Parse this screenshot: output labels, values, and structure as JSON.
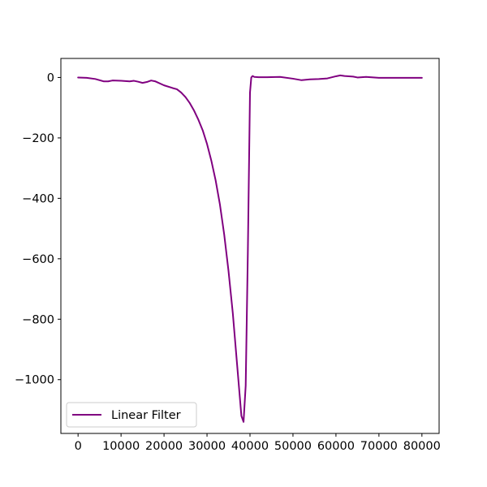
{
  "chart_data": {
    "type": "line",
    "title": "",
    "xlabel": "",
    "ylabel": "",
    "xlim": [
      -4000,
      84000
    ],
    "ylim": [
      -1178,
      63
    ],
    "x_ticks": [
      0,
      10000,
      20000,
      30000,
      40000,
      50000,
      60000,
      70000,
      80000
    ],
    "x_tick_labels": [
      "0",
      "10000",
      "20000",
      "30000",
      "40000",
      "50000",
      "60000",
      "70000",
      "80000"
    ],
    "y_ticks": [
      0,
      -200,
      -400,
      -600,
      -800,
      -1000
    ],
    "y_tick_labels": [
      "0",
      "−200",
      "−400",
      "−600",
      "−800",
      "−1000"
    ],
    "grid": false,
    "legend": {
      "position": "lower-left",
      "entries": [
        "Linear Filter"
      ]
    },
    "series": [
      {
        "name": "Linear Filter",
        "color": "#800080",
        "x": [
          0,
          2000,
          4000,
          6000,
          7000,
          8000,
          10000,
          12000,
          13000,
          14000,
          15000,
          16000,
          17000,
          18000,
          20000,
          22000,
          23000,
          24000,
          25000,
          26000,
          27000,
          28000,
          29000,
          30000,
          31000,
          32000,
          33000,
          34000,
          35000,
          36000,
          37000,
          38000,
          38500,
          39000,
          39500,
          40000,
          40300,
          40600,
          41000,
          42000,
          44000,
          47000,
          50000,
          52000,
          54000,
          56000,
          58000,
          60000,
          61000,
          62000,
          64000,
          65000,
          67000,
          70000,
          75000,
          80000
        ],
        "y": [
          0,
          -1,
          -5,
          -13,
          -13,
          -10,
          -11,
          -13,
          -11,
          -14,
          -18,
          -15,
          -10,
          -13,
          -26,
          -35,
          -39,
          -50,
          -65,
          -85,
          -110,
          -140,
          -175,
          -220,
          -275,
          -340,
          -420,
          -520,
          -640,
          -780,
          -950,
          -1120,
          -1140,
          -1020,
          -580,
          -50,
          0,
          5,
          2,
          1,
          1,
          2,
          -4,
          -9,
          -6,
          -5,
          -3,
          4,
          7,
          5,
          3,
          0,
          2,
          -1,
          -1,
          -1
        ]
      }
    ]
  }
}
